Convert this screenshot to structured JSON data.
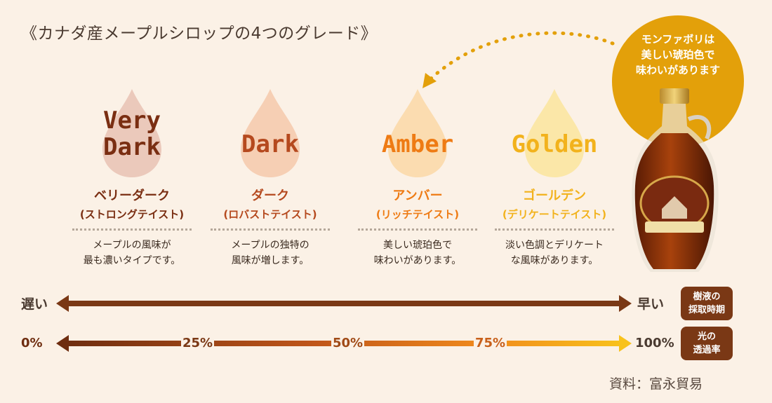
{
  "title": "《カナダ産メープルシロップの4つのグレード》",
  "grades": [
    {
      "en_line1": "Very",
      "en_line2": "Dark",
      "jp": "ベリーダーク",
      "sub": "(ストロングテイスト)",
      "desc_line1": "メープルの風味が",
      "desc_line2": "最も濃いタイプです。",
      "text_color": "#7a2e12",
      "drop_color": "#ebc9bb"
    },
    {
      "en_line1": "",
      "en_line2": "Dark",
      "jp": "ダーク",
      "sub": "(ロバストテイスト)",
      "desc_line1": "メープルの独特の",
      "desc_line2": "風味が増します。",
      "text_color": "#b5491e",
      "drop_color": "#f6cfb4"
    },
    {
      "en_line1": "",
      "en_line2": "Amber",
      "jp": "アンバー",
      "sub": "(リッチテイスト)",
      "desc_line1": "美しい琥珀色で",
      "desc_line2": "味わいがあります。",
      "text_color": "#ee7b14",
      "drop_color": "#fbdcb0"
    },
    {
      "en_line1": "",
      "en_line2": "Golden",
      "jp": "ゴールデン",
      "sub": "(デリケートテイスト)",
      "desc_line1": "淡い色調とデリケート",
      "desc_line2": "な風味があります。",
      "text_color": "#f2b21c",
      "drop_color": "#fbe7a8"
    }
  ],
  "callout": {
    "line1": "モンファボリは",
    "line2": "美しい琥珀色で",
    "line3": "味わいがあります"
  },
  "harvest_axis": {
    "left": "遅い",
    "right": "早い",
    "badge_line1": "樹液の",
    "badge_line2": "採取時期"
  },
  "transmittance_axis": {
    "ticks": [
      "0%",
      "25%",
      "50%",
      "75%",
      "100%"
    ],
    "badge_line1": "光の",
    "badge_line2": "透過率"
  },
  "source": "資料：富永貿易",
  "colors": {
    "dark_brown": "#7a3815",
    "callout_orange": "#e3a00a",
    "background": "#fbf1e6"
  }
}
